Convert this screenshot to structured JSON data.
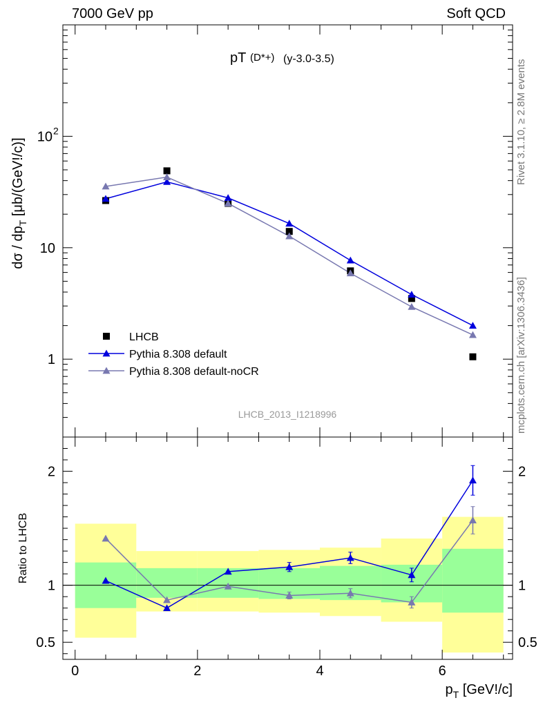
{
  "header": {
    "left": "7000 GeV pp",
    "right": "Soft QCD"
  },
  "side_texts": {
    "rivet": "Rivet 3.1.10, ≥ 2.8M events",
    "source": "mcplots.cern.ch [arXiv:1306.3436]"
  },
  "colors": {
    "data": "#000000",
    "default": "#0000dd",
    "nocr": "#7878b0",
    "band_inner": "#99ff99",
    "band_outer": "#ffff99"
  },
  "chart_data": [
    {
      "type": "line",
      "title": "pT(D*+) (y-3.0-3.5)",
      "title_main": "pT",
      "title_sub": "(D*+)",
      "title_rest": "(y-3.0-3.5)",
      "ylabel": "dσ / dp_T [μb/(GeV!/c)]",
      "yscale": "log",
      "ylim": [
        0.2,
        1000
      ],
      "xlim": [
        -0.2,
        7.15
      ],
      "y_ticks": [
        {
          "v": 1,
          "label": "1"
        },
        {
          "v": 10,
          "label": "10"
        },
        {
          "v": 100,
          "label": "10^2"
        }
      ],
      "watermark": "LHCB_2013_I1218996",
      "legend_position": "bottom-left",
      "x": [
        0.5,
        1.5,
        2.5,
        3.5,
        4.5,
        5.5,
        6.5
      ],
      "series": [
        {
          "name": "LHCB",
          "marker": "square",
          "color": "#000000",
          "values": [
            26.5,
            49,
            25,
            14,
            6.2,
            3.5,
            1.05
          ]
        },
        {
          "name": "Pythia 8.308 default",
          "marker": "triangle",
          "color": "#0000dd",
          "values": [
            27.5,
            39,
            28,
            16.5,
            7.7,
            3.8,
            2.0
          ]
        },
        {
          "name": "Pythia 8.308 default-noCR",
          "marker": "triangle",
          "color": "#7878b0",
          "values": [
            35.5,
            43,
            25,
            12.7,
            5.9,
            2.95,
            1.65
          ]
        }
      ]
    },
    {
      "type": "line",
      "ylabel": "Ratio to LHCB",
      "xlabel": "p_T [GeV!/c]",
      "ylim": [
        0.35,
        2.3
      ],
      "xlim": [
        -0.2,
        7.15
      ],
      "x_ticks": [
        0,
        2,
        4,
        6
      ],
      "y_ticks": [
        0.5,
        1,
        2
      ],
      "reference_line": 1,
      "bands": [
        {
          "x0": 0,
          "x1": 1,
          "inner": [
            0.8,
            1.2
          ],
          "outer": [
            0.54,
            1.54
          ]
        },
        {
          "x0": 1,
          "x1": 2,
          "inner": [
            0.89,
            1.15
          ],
          "outer": [
            0.77,
            1.3
          ]
        },
        {
          "x0": 2,
          "x1": 3,
          "inner": [
            0.89,
            1.15
          ],
          "outer": [
            0.77,
            1.3
          ]
        },
        {
          "x0": 3,
          "x1": 4,
          "inner": [
            0.88,
            1.15
          ],
          "outer": [
            0.76,
            1.31
          ]
        },
        {
          "x0": 4,
          "x1": 5,
          "inner": [
            0.87,
            1.17
          ],
          "outer": [
            0.73,
            1.33
          ]
        },
        {
          "x0": 5,
          "x1": 6,
          "inner": [
            0.85,
            1.18
          ],
          "outer": [
            0.68,
            1.41
          ]
        },
        {
          "x0": 6,
          "x1": 7,
          "inner": [
            0.76,
            1.32
          ],
          "outer": [
            0.41,
            1.6
          ]
        }
      ],
      "x": [
        0.5,
        1.5,
        2.5,
        3.5,
        4.5,
        5.5,
        6.5
      ],
      "series": [
        {
          "name": "Pythia 8.308 default",
          "color": "#0000dd",
          "values": [
            1.04,
            0.8,
            1.12,
            1.16,
            1.24,
            1.09,
            1.92
          ],
          "errors": [
            0.01,
            0.01,
            0.015,
            0.04,
            0.05,
            0.06,
            0.13
          ]
        },
        {
          "name": "Pythia 8.308 default-noCR",
          "color": "#7878b0",
          "values": [
            1.41,
            0.87,
            0.99,
            0.91,
            0.93,
            0.85,
            1.57
          ],
          "errors": [
            0.01,
            0.01,
            0.015,
            0.03,
            0.04,
            0.05,
            0.12
          ]
        }
      ]
    }
  ]
}
